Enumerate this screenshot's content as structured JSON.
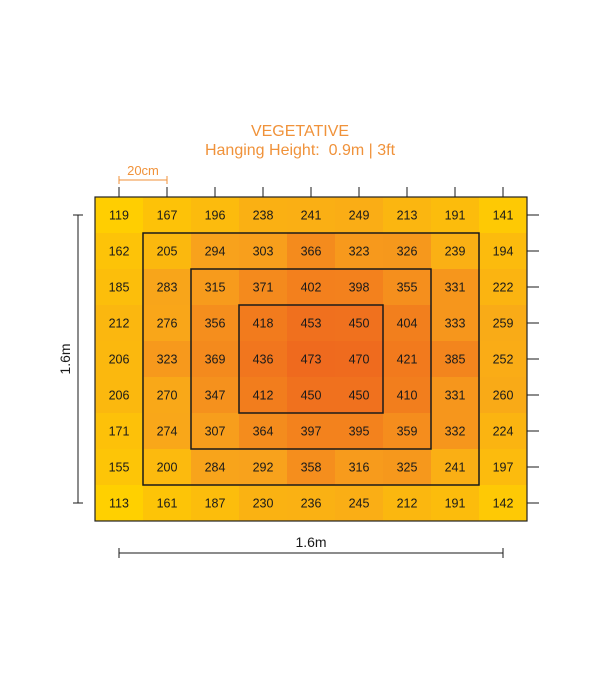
{
  "chart_data": {
    "type": "heatmap",
    "title": "VEGETATIVE",
    "subtitle": "Hanging Height:  0.9m | 3ft",
    "scale_label": "20cm",
    "width_label": "1.6m",
    "height_label": "1.6m",
    "grid": [
      [
        119,
        167,
        196,
        238,
        241,
        249,
        213,
        191,
        141
      ],
      [
        162,
        205,
        294,
        303,
        366,
        323,
        326,
        239,
        194
      ],
      [
        185,
        283,
        315,
        371,
        402,
        398,
        355,
        331,
        222
      ],
      [
        212,
        276,
        356,
        418,
        453,
        450,
        404,
        333,
        259
      ],
      [
        206,
        323,
        369,
        436,
        473,
        470,
        421,
        385,
        252
      ],
      [
        206,
        270,
        347,
        412,
        450,
        450,
        410,
        331,
        260
      ],
      [
        171,
        274,
        307,
        364,
        397,
        395,
        359,
        332,
        224
      ],
      [
        155,
        200,
        284,
        292,
        358,
        316,
        325,
        241,
        197
      ],
      [
        113,
        161,
        187,
        230,
        236,
        245,
        212,
        191,
        142
      ]
    ],
    "colors": {
      "low": "#ffd000",
      "mid": "#f8a21c",
      "high": "#ef6a1e",
      "text": "#f0923a"
    }
  }
}
